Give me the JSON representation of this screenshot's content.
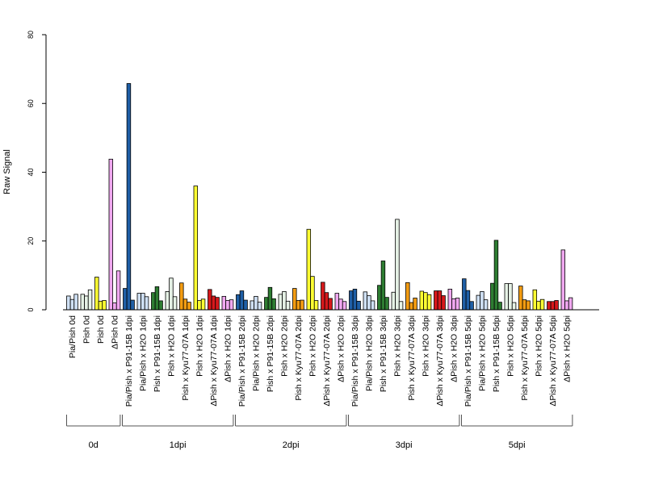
{
  "chart_data": {
    "type": "bar",
    "ylabel": "Raw Signal",
    "ylim": [
      0,
      80
    ],
    "yticks": [
      0,
      20,
      40,
      60,
      80
    ],
    "grid": false,
    "legend": "none",
    "groups": [
      {
        "label": "Pia/Pish 0d",
        "color": "#cfe0f4",
        "values": [
          4,
          3,
          4.5
        ]
      },
      {
        "label": "Pish 0d",
        "color": "#e6f2e6",
        "values": [
          4.5,
          4,
          5.8
        ]
      },
      {
        "label": "Pish 0d",
        "color": "#ffff33",
        "values": [
          9.5,
          2.5,
          2.7
        ]
      },
      {
        "label": "ΔPish 0d",
        "color": "#f0a8f0",
        "values": [
          43.8,
          2,
          11.3
        ]
      },
      {
        "label": "Pia/Pish x P91-15B 1dpi",
        "color": "#1f5fa6",
        "values": [
          6.2,
          65.8,
          2.8
        ]
      },
      {
        "label": "Pia/Pish x H2O 1dpi",
        "color": "#cfe0f4",
        "values": [
          4.8,
          4.8,
          3.8
        ]
      },
      {
        "label": "Pish x P91-15B 1dpi",
        "color": "#2e7d32",
        "values": [
          5,
          6.7,
          2.6
        ]
      },
      {
        "label": "Pish x H2O 1dpi",
        "color": "#e6f2e6",
        "values": [
          5.3,
          9.2,
          3.8
        ]
      },
      {
        "label": "Pish x Kyu77-07A 1dpi",
        "color": "#f39c12",
        "values": [
          7.8,
          3.1,
          2.2
        ]
      },
      {
        "label": "Pish x H2O 1dpi",
        "color": "#ffff33",
        "values": [
          36,
          2.7,
          3.1
        ]
      },
      {
        "label": "ΔPish x Kyu77-07A 1dpi",
        "color": "#d7191c",
        "values": [
          5.9,
          4,
          3.6
        ]
      },
      {
        "label": "ΔPish x H2O 1dpi",
        "color": "#f0a8f0",
        "values": [
          3.9,
          2.7,
          2.9
        ]
      },
      {
        "label": "Pia/Pish x P91-15B 2dpi",
        "color": "#1f5fa6",
        "values": [
          4.4,
          5.5,
          2.8
        ]
      },
      {
        "label": "Pia/Pish x H2O 2dpi",
        "color": "#cfe0f4",
        "values": [
          2.6,
          3.9,
          2.2
        ]
      },
      {
        "label": "Pish x P91-15B 2dpi",
        "color": "#2e7d32",
        "values": [
          3.6,
          6.5,
          3.2
        ]
      },
      {
        "label": "Pish x H2O 2dpi",
        "color": "#e6f2e6",
        "values": [
          4.5,
          5.3,
          2.5
        ]
      },
      {
        "label": "Pish x Kyu77-07A 2dpi",
        "color": "#f39c12",
        "values": [
          6.2,
          2.7,
          2.8
        ]
      },
      {
        "label": "Pish x H2O 2dpi",
        "color": "#ffff33",
        "values": [
          23.4,
          9.7,
          2.7
        ]
      },
      {
        "label": "ΔPish x Kyu77-07A 2dpi",
        "color": "#d7191c",
        "values": [
          8,
          5,
          3.3
        ]
      },
      {
        "label": "ΔPish x H2O 2dpi",
        "color": "#f0a8f0",
        "values": [
          4.8,
          3.1,
          2.4
        ]
      },
      {
        "label": "Pia/Pish x P91-15B 3dpi",
        "color": "#1f5fa6",
        "values": [
          5.5,
          6,
          2.5
        ]
      },
      {
        "label": "Pia/Pish x H2O 3dpi",
        "color": "#cfe0f4",
        "values": [
          5.2,
          4.1,
          2.6
        ]
      },
      {
        "label": "Pish x P91-15B 3dpi",
        "color": "#2e7d32",
        "values": [
          7.1,
          14.2,
          3.6
        ]
      },
      {
        "label": "Pish x H2O 3dpi",
        "color": "#e6f2e6",
        "values": [
          5.1,
          26.3,
          2.4
        ]
      },
      {
        "label": "Pish x Kyu77-07A 3dpi",
        "color": "#f39c12",
        "values": [
          7.9,
          2.1,
          3.4
        ]
      },
      {
        "label": "Pish x H2O 3dpi",
        "color": "#ffff33",
        "values": [
          5.4,
          5,
          4.4
        ]
      },
      {
        "label": "ΔPish x Kyu77-07A 3dpi",
        "color": "#d7191c",
        "values": [
          5.5,
          5.5,
          4.1
        ]
      },
      {
        "label": "ΔPish x H2O 3dpi",
        "color": "#f0a8f0",
        "values": [
          6,
          3.2,
          3.4
        ]
      },
      {
        "label": "Pia/Pish x P91-15B 5dpi",
        "color": "#1f5fa6",
        "values": [
          9,
          5.6,
          2.4
        ]
      },
      {
        "label": "Pia/Pish x H2O 5dpi",
        "color": "#cfe0f4",
        "values": [
          4.2,
          5.3,
          2.9
        ]
      },
      {
        "label": "Pish x P91-15B 5dpi",
        "color": "#2e7d32",
        "values": [
          7.7,
          20.2,
          2.2
        ]
      },
      {
        "label": "Pish x H2O 5dpi",
        "color": "#e6f2e6",
        "values": [
          7.6,
          7.6,
          2.1
        ]
      },
      {
        "label": "Pish x Kyu77-07A 5dpi",
        "color": "#f39c12",
        "values": [
          6.9,
          2.9,
          2.6
        ]
      },
      {
        "label": "Pish x H2O 5dpi",
        "color": "#ffff33",
        "values": [
          5.8,
          2.5,
          3
        ]
      },
      {
        "label": "ΔPish x Kyu77-07A 5dpi",
        "color": "#d7191c",
        "values": [
          2.4,
          2.4,
          2.7
        ]
      },
      {
        "label": "ΔPish x H2O 5dpi",
        "color": "#f0a8f0",
        "values": [
          17.4,
          2.6,
          3.5
        ]
      }
    ],
    "time_points": [
      {
        "label": "0d",
        "first_group": 0,
        "last_group": 3
      },
      {
        "label": "1dpi",
        "first_group": 4,
        "last_group": 11
      },
      {
        "label": "2dpi",
        "first_group": 12,
        "last_group": 19
      },
      {
        "label": "3dpi",
        "first_group": 20,
        "last_group": 27
      },
      {
        "label": "5dpi",
        "first_group": 28,
        "last_group": 35
      }
    ]
  }
}
